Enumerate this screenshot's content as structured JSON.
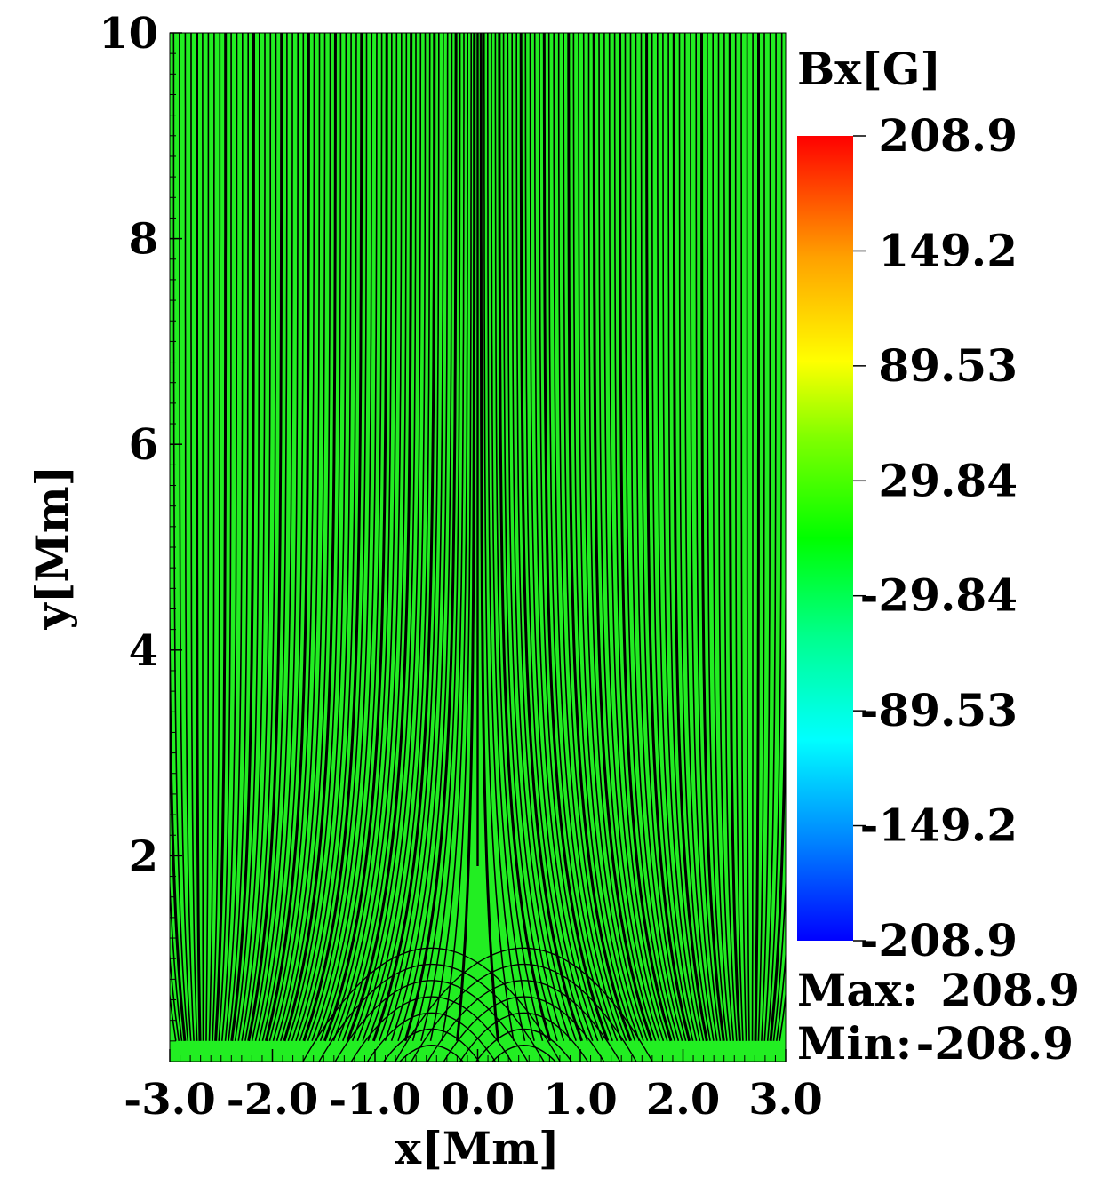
{
  "chart_data": {
    "type": "heatmap",
    "title": "",
    "xlabel": "x[Mm]",
    "ylabel": "y[Mm]",
    "xlim": [
      -3.0,
      3.0
    ],
    "ylim": [
      0,
      10
    ],
    "x_ticks": [
      -3.0,
      -2.0,
      -1.0,
      0.0,
      1.0,
      2.0,
      3.0
    ],
    "x_tick_labels": [
      "-3.0",
      "-2.0",
      "-1.0",
      "0.0",
      "1.0",
      "2.0",
      "3.0"
    ],
    "y_ticks": [
      2,
      4,
      6,
      8,
      10
    ],
    "y_tick_labels": [
      "2",
      "4",
      "6",
      "8",
      "10"
    ],
    "colorbar": {
      "label": "Bx[G]",
      "min": -208.9,
      "max": 208.9,
      "ticks": [
        208.9,
        149.2,
        89.53,
        29.84,
        -29.84,
        -89.53,
        -149.2,
        -208.9
      ],
      "tick_labels": [
        "208.9",
        "149.2",
        "89.53",
        "29.84",
        "-29.84",
        "-89.53",
        "-149.2",
        "-208.9"
      ],
      "colormap": [
        "#0000ff",
        "#00aaff",
        "#00ffff",
        "#00ff80",
        "#00ff00",
        "#80ff00",
        "#ffff00",
        "#ffaa00",
        "#ff0000"
      ]
    },
    "field": {
      "quantity": "Bx",
      "units": "G",
      "max": 208.9,
      "min": -208.9,
      "negative_lobe_center_x": -0.3,
      "positive_lobe_center_x": 0.3,
      "background_value": 0
    },
    "overlay": "magnetic field lines",
    "stats": {
      "max_label": "Max:",
      "max_value": "208.9",
      "min_label": "Min:",
      "min_value": "-208.9"
    }
  },
  "colors": {
    "background_field": "#22ee22",
    "field_line": "#000000"
  }
}
